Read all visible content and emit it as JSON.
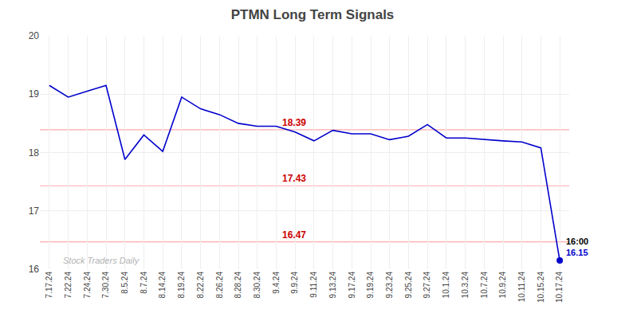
{
  "chart_data": {
    "type": "line",
    "title": "PTMN Long Term Signals",
    "categories": [
      "7.17.24",
      "7.22.24",
      "7.24.24",
      "7.30.24",
      "8.5.24",
      "8.7.24",
      "8.14.24",
      "8.19.24",
      "8.22.24",
      "8.26.24",
      "8.28.24",
      "8.30.24",
      "9.4.24",
      "9.9.24",
      "9.11.24",
      "9.13.24",
      "9.17.24",
      "9.19.24",
      "9.23.24",
      "9.25.24",
      "9.27.24",
      "10.1.24",
      "10.3.24",
      "10.7.24",
      "10.9.24",
      "10.11.24",
      "10.15.24",
      "10.17.24"
    ],
    "values": [
      19.15,
      18.95,
      19.05,
      19.15,
      17.88,
      18.3,
      18.02,
      18.95,
      18.75,
      18.65,
      18.5,
      18.45,
      18.45,
      18.35,
      18.2,
      18.38,
      18.32,
      18.32,
      18.22,
      18.28,
      18.48,
      18.25,
      18.25,
      18.22,
      18.2,
      18.18,
      18.08,
      16.15
    ],
    "color": "#0000cc",
    "marker": "last",
    "reference_lines": [
      {
        "value": 18.39,
        "label": "18.39",
        "color": "#ffaaaa",
        "label_color": "#cc0000"
      },
      {
        "value": 17.43,
        "label": "17.43",
        "color": "#ffaaaa",
        "label_color": "#cc0000"
      },
      {
        "value": 16.47,
        "label": "16.47",
        "color": "#ffaaaa",
        "label_color": "#cc0000"
      }
    ],
    "annotations": [
      {
        "text": "16:00"
      },
      {
        "text": "16.15",
        "color": "#0000cc"
      }
    ],
    "watermark": "Stock Traders Daily",
    "ylim": [
      16,
      20
    ],
    "yticks": [
      16,
      17,
      18,
      19,
      20
    ],
    "grid": true
  }
}
